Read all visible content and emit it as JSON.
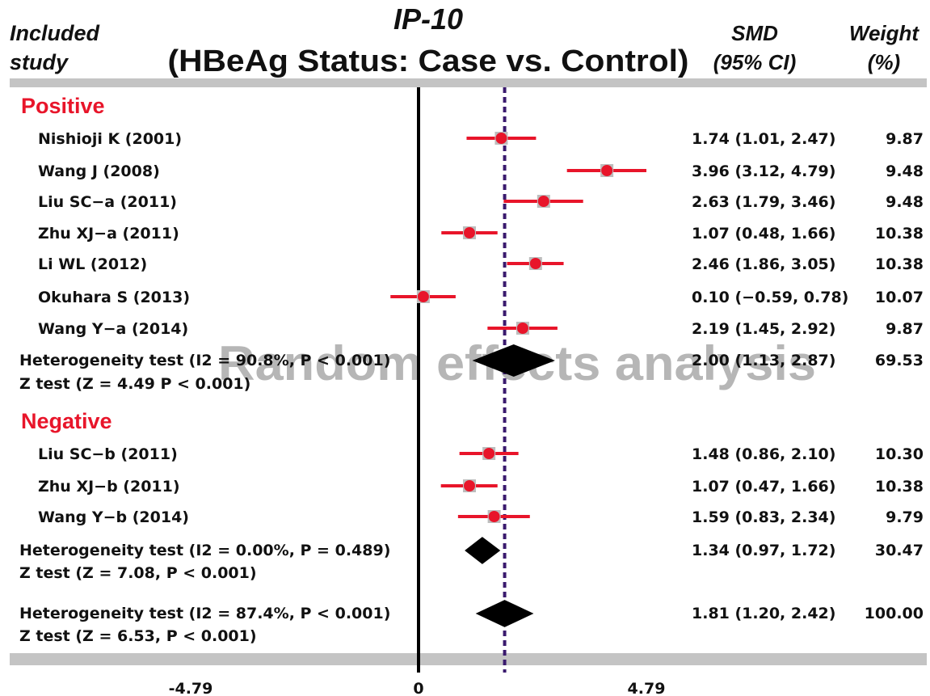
{
  "chart_data": {
    "type": "forest",
    "title": "IP-10",
    "subtitle": "(HBeAg Status: Case vs. Control)",
    "column_headers": {
      "study": [
        "Included",
        "study"
      ],
      "smd": [
        "SMD",
        "(95% CI)"
      ],
      "weight": [
        "Weight",
        "(%)"
      ]
    },
    "watermark": "Random effects analysis",
    "xlim": [
      -4.79,
      4.79
    ],
    "x_ticks": [
      "-4.79",
      "0",
      "4.79"
    ],
    "reference_line": 0,
    "overall_line": 1.81,
    "colors": {
      "study": "#e8152a",
      "section": "#e8152a",
      "diamond": "#000000",
      "overall_line": "#3a1a6e",
      "axis_band": "#c4c4c4"
    },
    "groups": [
      {
        "name": "Positive",
        "studies": [
          {
            "label": "Nishioji K (2001)",
            "smd": 1.74,
            "lo": 1.01,
            "hi": 2.47,
            "ci_text": "1.74 (1.01, 2.47)",
            "weight": "9.87"
          },
          {
            "label": "Wang J (2008)",
            "smd": 3.96,
            "lo": 3.12,
            "hi": 4.79,
            "ci_text": "3.96 (3.12, 4.79)",
            "weight": "9.48"
          },
          {
            "label": "Liu SC−a (2011)",
            "smd": 2.63,
            "lo": 1.79,
            "hi": 3.46,
            "ci_text": "2.63 (1.79, 3.46)",
            "weight": "9.48"
          },
          {
            "label": "Zhu XJ−a (2011)",
            "smd": 1.07,
            "lo": 0.48,
            "hi": 1.66,
            "ci_text": "1.07 (0.48, 1.66)",
            "weight": "10.38"
          },
          {
            "label": "Li WL (2012)",
            "smd": 2.46,
            "lo": 1.86,
            "hi": 3.05,
            "ci_text": "2.46 (1.86, 3.05)",
            "weight": "10.38"
          },
          {
            "label": "Okuhara S (2013)",
            "smd": 0.1,
            "lo": -0.59,
            "hi": 0.78,
            "ci_text": "0.10 (−0.59, 0.78)",
            "weight": "10.07"
          },
          {
            "label": "Wang Y−a (2014)",
            "smd": 2.19,
            "lo": 1.45,
            "hi": 2.92,
            "ci_text": "2.19 (1.45, 2.92)",
            "weight": "9.87"
          }
        ],
        "summary": {
          "heterogeneity": "Heterogeneity test (I2 = 90.8%, P < 0.001)",
          "z_test": "Z test (Z = 4.49 P < 0.001)",
          "smd": 2.0,
          "lo": 1.13,
          "hi": 2.87,
          "ci_text": "2.00 (1.13, 2.87)",
          "weight": "69.53"
        }
      },
      {
        "name": "Negative",
        "studies": [
          {
            "label": "Liu SC−b (2011)",
            "smd": 1.48,
            "lo": 0.86,
            "hi": 2.1,
            "ci_text": "1.48 (0.86, 2.10)",
            "weight": "10.30"
          },
          {
            "label": "Zhu XJ−b (2011)",
            "smd": 1.07,
            "lo": 0.47,
            "hi": 1.66,
            "ci_text": "1.07 (0.47, 1.66)",
            "weight": "10.38"
          },
          {
            "label": "Wang Y−b (2014)",
            "smd": 1.59,
            "lo": 0.83,
            "hi": 2.34,
            "ci_text": "1.59 (0.83, 2.34)",
            "weight": "9.79"
          }
        ],
        "summary": {
          "heterogeneity": "Heterogeneity test (I2 = 0.00%, P = 0.489)",
          "z_test": "Z test (Z = 7.08, P < 0.001)",
          "smd": 1.34,
          "lo": 0.97,
          "hi": 1.72,
          "ci_text": "1.34 (0.97, 1.72)",
          "weight": "30.47"
        }
      }
    ],
    "overall": {
      "heterogeneity": "Heterogeneity test (I2 = 87.4%, P < 0.001)",
      "z_test": "Z test (Z = 6.53, P < 0.001)",
      "smd": 1.81,
      "lo": 1.2,
      "hi": 2.42,
      "ci_text": "1.81 (1.20, 2.42)",
      "weight": "100.00"
    }
  }
}
